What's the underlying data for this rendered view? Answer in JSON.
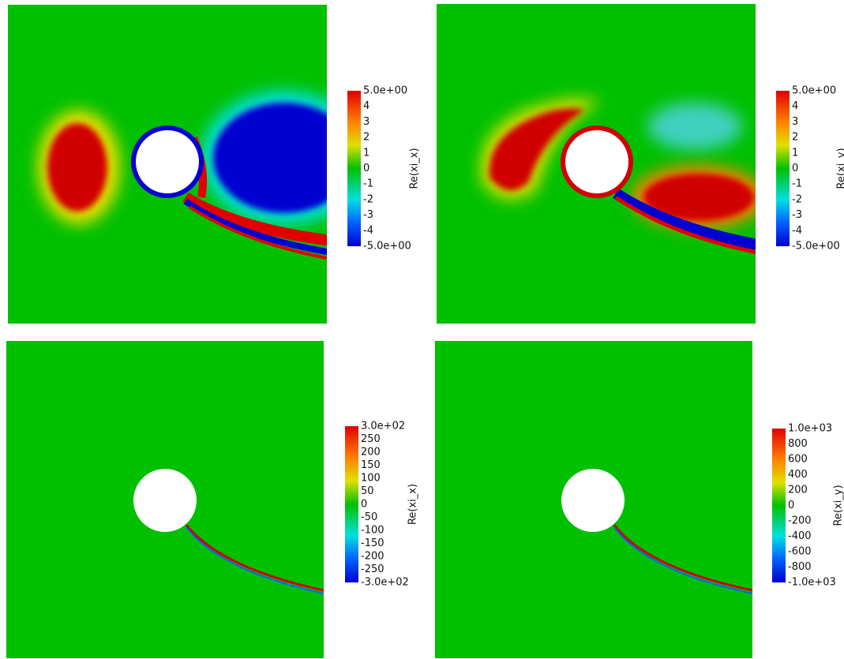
{
  "panels": [
    {
      "colorbar": {
        "label": "Re(xi_x)",
        "ticks": [
          "5.0e+00",
          "4",
          "3",
          "2",
          "1",
          "0",
          "-1",
          "-2",
          "-3",
          "-4",
          "-5.0e+00"
        ]
      }
    },
    {
      "colorbar": {
        "label": "Re(xi_y)",
        "ticks": [
          "5.0e+00",
          "4",
          "3",
          "2",
          "1",
          "0",
          "-1",
          "-2",
          "-3",
          "-4",
          "-5.0e+00"
        ]
      }
    },
    {
      "colorbar": {
        "label": "Re(xi_x)",
        "ticks": [
          "3.0e+02",
          "250",
          "200",
          "150",
          "100",
          "50",
          "0",
          "-50",
          "-100",
          "-150",
          "-200",
          "-250",
          "-3.0e+02"
        ]
      }
    },
    {
      "colorbar": {
        "label": "Re(xi_y)",
        "ticks": [
          "1.0e+03",
          "800",
          "600",
          "400",
          "200",
          "0",
          "-200",
          "-400",
          "-600",
          "-800",
          "-1.0e+03"
        ]
      }
    }
  ]
}
